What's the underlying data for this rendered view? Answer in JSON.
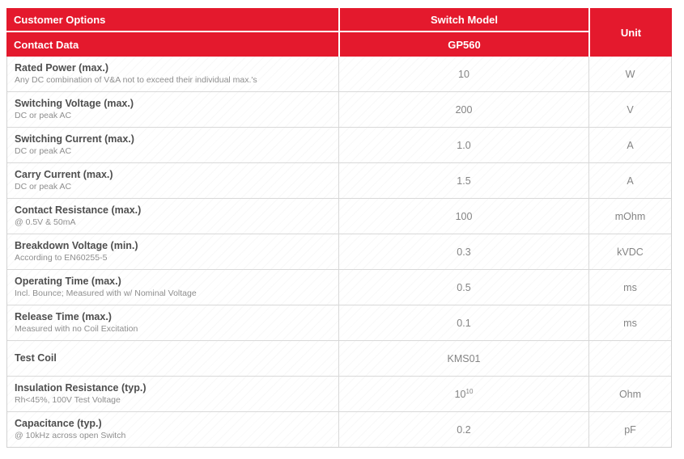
{
  "header": {
    "customer_options": "Customer Options",
    "contact_data": "Contact Data",
    "switch_model": "Switch Model",
    "model_value": "GP560",
    "unit": "Unit"
  },
  "colors": {
    "header_red": "#e4192d",
    "header_text": "#ffffff",
    "border": "#d8d8d8",
    "label_text": "#4e4e4e",
    "sublabel_text": "#8e8e8e",
    "value_text": "#848484"
  },
  "rows": [
    {
      "label": "Rated Power (max.)",
      "sublabel": "Any DC combination of V&A not to exceed their individual  max.'s",
      "value": "10",
      "unit": "W"
    },
    {
      "label": "Switching Voltage (max.)",
      "sublabel": "DC or peak AC",
      "value": "200",
      "unit": "V"
    },
    {
      "label": "Switching Current (max.)",
      "sublabel": "DC or peak AC",
      "value": "1.0",
      "unit": "A"
    },
    {
      "label": "Carry Current (max.)",
      "sublabel": "DC or peak AC",
      "value": "1.5",
      "unit": "A"
    },
    {
      "label": "Contact Resistance (max.)",
      "sublabel": "@ 0.5V & 50mA",
      "value": "100",
      "unit": "mOhm"
    },
    {
      "label": "Breakdown Voltage (min.)",
      "sublabel": "According to EN60255-5",
      "value": "0.3",
      "unit": "kVDC"
    },
    {
      "label": "Operating Time (max.)",
      "sublabel": "Incl. Bounce; Measured with w/ Nominal Voltage",
      "value": "0.5",
      "unit": "ms"
    },
    {
      "label": "Release Time (max.)",
      "sublabel": "Measured with no Coil Excitation",
      "value": "0.1",
      "unit": "ms"
    },
    {
      "label": "Test Coil",
      "sublabel": "",
      "value": "KMS01",
      "unit": ""
    },
    {
      "label": "Insulation Resistance (typ.)",
      "sublabel": "Rh<45%, 100V Test Voltage",
      "value": "10",
      "value_sup": "10",
      "unit": "Ohm"
    },
    {
      "label": "Capacitance (typ.)",
      "sublabel": "@ 10kHz across open Switch",
      "value": "0.2",
      "unit": "pF"
    }
  ]
}
